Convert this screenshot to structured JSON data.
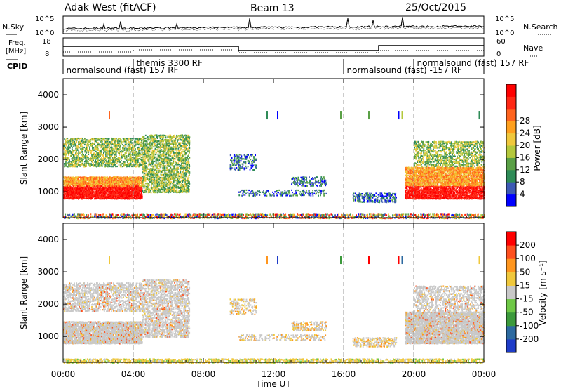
{
  "header": {
    "station": "Adak West (fitACF)",
    "beam": "Beam 13",
    "date": "25/Oct/2015"
  },
  "top_labels": {
    "nsky": "N.Sky",
    "nsearch": "N.Search",
    "freq": "Freq.",
    "mhz": "[MHz]",
    "nave": "Nave",
    "cpid": "CPID",
    "left_ticks": [
      "10^5",
      "10^0",
      "18",
      "8"
    ],
    "right_ticks": [
      "10^5",
      "10^0",
      "60",
      "0"
    ]
  },
  "cpid_labels": [
    {
      "text": "normalsound (fast) 157 RF",
      "x_hour": 0.1,
      "row": 2
    },
    {
      "text": "themis 3300 RF",
      "x_hour": 4.1,
      "row": 1
    },
    {
      "text": "normalsound (fast) -157 RF",
      "x_hour": 16.1,
      "row": 2
    },
    {
      "text": "normalsound (fast)  157 RF",
      "x_hour": 20.1,
      "row": 1
    }
  ],
  "chart_data": [
    {
      "type": "heatmap",
      "ylabel": "Slant Range [km]",
      "ylim": [
        200,
        4500
      ],
      "yticks": [
        1000,
        2000,
        3000,
        4000
      ],
      "xlim": [
        0,
        24
      ],
      "colorbar": {
        "label": "Power [dB]",
        "ticks": [
          "4",
          "8",
          "12",
          "16",
          "20",
          "24",
          "28"
        ],
        "colors": [
          "#0000ff",
          "#3d5ab4",
          "#2e8b57",
          "#5aa046",
          "#b4c83c",
          "#f0c83c",
          "#ffa01e",
          "#ff641e",
          "#ff2814",
          "#ff0000"
        ]
      }
    },
    {
      "type": "heatmap",
      "ylabel": "Velocity [m s^-1]",
      "ylabel_left": "Slant Range [km]",
      "ylim": [
        200,
        4500
      ],
      "yticks": [
        1000,
        2000,
        3000,
        4000
      ],
      "xlim": [
        0,
        24
      ],
      "colorbar": {
        "label": "Velocity [m s⁻¹]",
        "ticks": [
          "200",
          "100",
          "50",
          "15",
          "-15",
          "-50",
          "-100",
          "-200"
        ],
        "colors": [
          "#1e3cc8",
          "#2d6aa0",
          "#3c9a3c",
          "#6ec846",
          "#c8c8c8",
          "#f0c83c",
          "#ff961e",
          "#ff501e",
          "#ff0000"
        ]
      }
    }
  ],
  "xaxis": {
    "label": "Time UT",
    "ticks": [
      "00:00",
      "04:00",
      "08:00",
      "12:00",
      "16:00",
      "20:00",
      "00:00"
    ]
  }
}
